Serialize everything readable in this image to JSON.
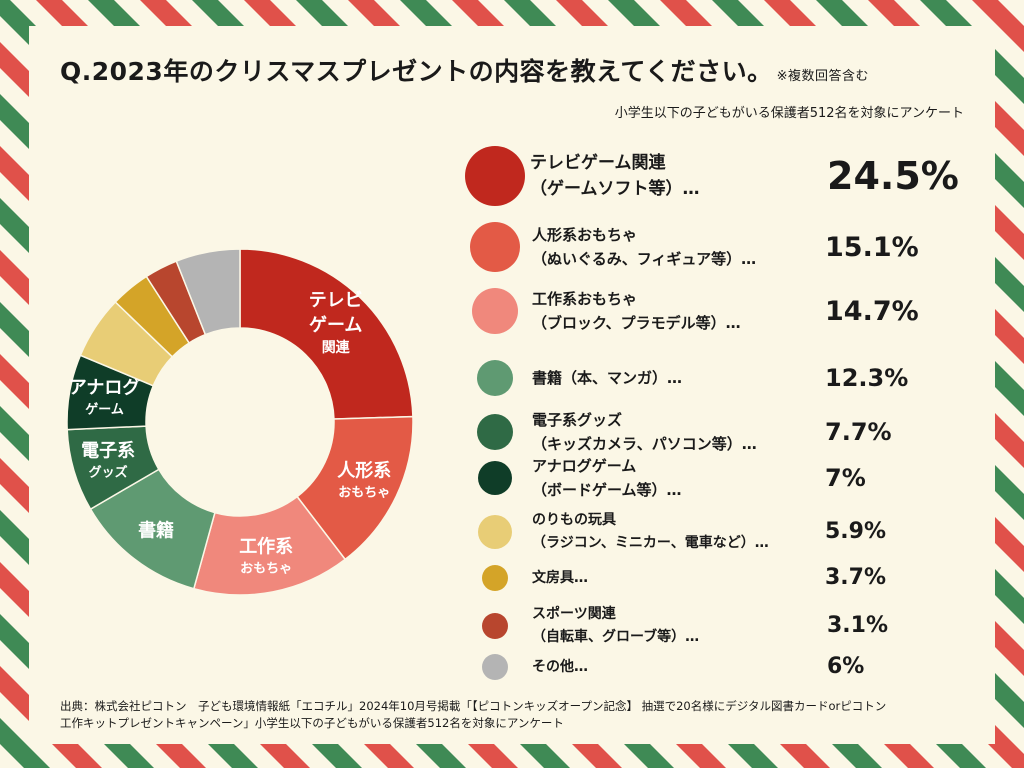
{
  "header": {
    "title": "Q.2023年のクリスマスプレゼントの内容を教えてください。",
    "note": "※複数回答含む",
    "subtitle": "小学生以下の子どもがいる保護者512名を対象にアンケート"
  },
  "chart_data": {
    "type": "pie",
    "categories": [
      "テレビゲーム関連",
      "人形系おもちゃ",
      "工作系おもちゃ",
      "書籍",
      "電子系グッズ",
      "アナログゲーム",
      "のりもの玩具",
      "文房具",
      "スポーツ関連",
      "その他"
    ],
    "values": [
      24.5,
      15.1,
      14.7,
      12.3,
      7.7,
      7.0,
      5.9,
      3.7,
      3.1,
      6.0
    ],
    "unit": "%",
    "colors": [
      "#c0281e",
      "#e35a46",
      "#f0887c",
      "#5f9a72",
      "#2f6a45",
      "#0f3d28",
      "#e8cd76",
      "#d4a428",
      "#b8462e",
      "#b4b4b4"
    ],
    "slice_labels": [
      [
        "テレビ",
        "ゲーム",
        "関連"
      ],
      [
        "人形系",
        "おもちゃ"
      ],
      [
        "工作系",
        "おもちゃ"
      ],
      [
        "書籍"
      ],
      [
        "電子系",
        "グッズ"
      ],
      [
        "アナログ",
        "ゲーム"
      ],
      [],
      [],
      [],
      []
    ],
    "legend": [
      {
        "line1": "テレビゲーム関連",
        "line2": "（ゲームソフト等）…",
        "value": "24.5%"
      },
      {
        "line1": "人形系おもちゃ",
        "line2": "（ぬいぐるみ、フィギュア等）…",
        "value": "15.1%"
      },
      {
        "line1": "工作系おもちゃ",
        "line2": "（ブロック、プラモデル等）…",
        "value": "14.7%"
      },
      {
        "line1": "書籍（本、マンガ）…",
        "line2": "",
        "value": "12.3%"
      },
      {
        "line1": "電子系グッズ",
        "line2": "（キッズカメラ、パソコン等）…",
        "value": "7.7%"
      },
      {
        "line1": "アナログゲーム",
        "line2": "（ボードゲーム等）…",
        "value": "7%"
      },
      {
        "line1": "のりもの玩具",
        "line2": "（ラジコン、ミニカー、電車など）…",
        "value": "5.9%"
      },
      {
        "line1": "文房具…",
        "line2": "",
        "value": "3.7%"
      },
      {
        "line1": "スポーツ関連",
        "line2": "（自転車、グローブ等）…",
        "value": "3.1%"
      },
      {
        "line1": "その他…",
        "line2": "",
        "value": "6%"
      }
    ]
  },
  "source": {
    "line1": "出典：株式会社ピコトン　子ども環境情報紙「エコチル」2024年10月号掲載「【ピコトンキッズオープン記念】 抽選で20名様にデジタル図書カードorピコトン",
    "line2": "工作キットプレゼントキャンペーン」小学生以下の子どもがいる保護者512名を対象にアンケート"
  },
  "frame_colors": {
    "background": "#fbf7e6",
    "stripe_red": "#e0514a",
    "stripe_green": "#3f8a55"
  }
}
